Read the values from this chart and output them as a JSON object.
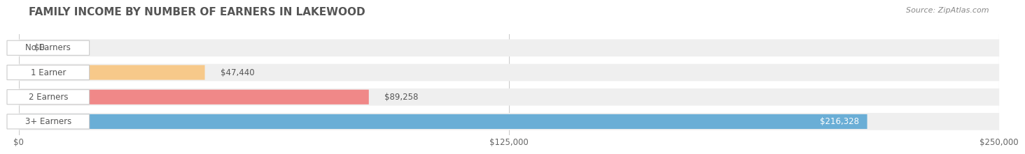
{
  "title": "FAMILY INCOME BY NUMBER OF EARNERS IN LAKEWOOD",
  "source": "Source: ZipAtlas.com",
  "categories": [
    "No Earners",
    "1 Earner",
    "2 Earners",
    "3+ Earners"
  ],
  "values": [
    0,
    47440,
    89258,
    216328
  ],
  "bar_colors": [
    "#f898b0",
    "#f7c98a",
    "#f08888",
    "#6aaed6"
  ],
  "bar_bg_color": "#efefef",
  "value_labels": [
    "$0",
    "$47,440",
    "$89,258",
    "$216,328"
  ],
  "x_ticks": [
    0,
    125000,
    250000
  ],
  "x_tick_labels": [
    "$0",
    "$125,000",
    "$250,000"
  ],
  "xlim": [
    0,
    250000
  ],
  "background_color": "#ffffff",
  "title_color": "#555555",
  "source_color": "#888888",
  "label_bg_color": "#ffffff",
  "label_text_color": "#555555",
  "value_text_color_white": "#ffffff",
  "value_text_color_dark": "#555555",
  "grid_color": "#cccccc"
}
